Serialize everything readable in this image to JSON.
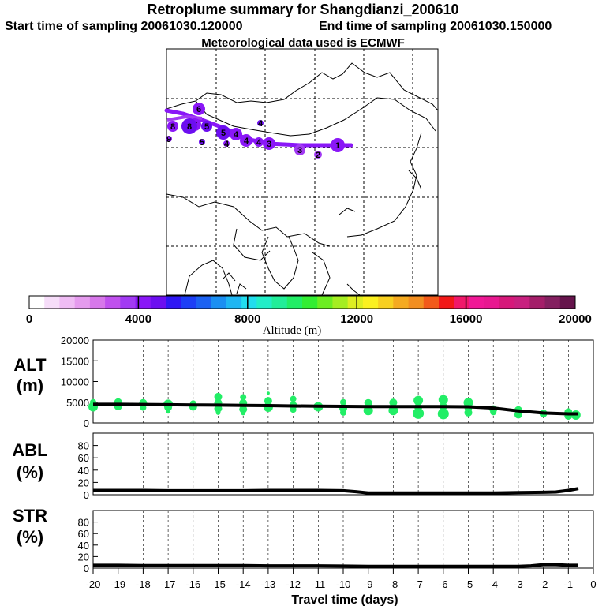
{
  "header": {
    "title": "Retroplume summary for Shangdianzi_200610",
    "start": "Start time of sampling 20061030.120000",
    "end": "End time of sampling 20061030.150000",
    "met": "Meteorological data used is ECMWF"
  },
  "colorbar": {
    "ticks": [
      "0",
      "4000",
      "8000",
      "12000",
      "16000",
      "20000"
    ],
    "label": "Altitude (m)",
    "colors": [
      "#ffffff",
      "#f6ddf9",
      "#efbcf4",
      "#e59bee",
      "#d777ea",
      "#c050ee",
      "#a23af3",
      "#8a17f7",
      "#6c0ef0",
      "#2f17f4",
      "#1d3ff6",
      "#1c62f2",
      "#1b8ff2",
      "#1fb6f2",
      "#22ddee",
      "#22eec8",
      "#22ee99",
      "#22ee66",
      "#33ee33",
      "#6cee22",
      "#a5ee22",
      "#ddee22",
      "#fbf020",
      "#f8d020",
      "#f5aa20",
      "#f28e20",
      "#f25a1a",
      "#f21818",
      "#f0186a",
      "#f01896",
      "#e81890",
      "#d6187a",
      "#c8207f",
      "#a41e69",
      "#842060",
      "#66144c"
    ]
  },
  "map": {
    "markers": [
      {
        "t": "1",
        "alt": 3900
      },
      {
        "t": "2",
        "alt": 3500
      },
      {
        "t": "3",
        "alt": 3800
      },
      {
        "t": "3",
        "alt": 4000
      },
      {
        "t": "4",
        "alt": 4100
      },
      {
        "t": "4",
        "alt": 4200
      },
      {
        "t": "4",
        "alt": 4300
      },
      {
        "t": "5",
        "alt": 4500
      },
      {
        "t": "5",
        "alt": 4600
      },
      {
        "t": "4",
        "alt": 4400
      },
      {
        "t": "4",
        "alt": 4800
      },
      {
        "t": "5",
        "alt": 4700
      },
      {
        "t": "6",
        "alt": 4200
      },
      {
        "t": "7",
        "alt": 4300
      },
      {
        "t": "8",
        "alt": 4400
      },
      {
        "t": "9",
        "alt": 4100
      },
      {
        "t": "8",
        "alt": 4500
      }
    ]
  },
  "chart_data": [
    {
      "type": "line",
      "name": "ALT",
      "ylabel_lines": [
        "ALT",
        "(m)"
      ],
      "ylim": [
        0,
        20000
      ],
      "yticks": [
        "0",
        "5000",
        "10000",
        "15000",
        "20000"
      ],
      "x": [
        -20,
        -19,
        -18,
        -17,
        -16,
        -15,
        -14,
        -13,
        -12,
        -11,
        -10,
        -9,
        -8,
        -7,
        -6,
        -5,
        -4,
        -3,
        -2,
        -1,
        -0.6
      ],
      "values": [
        4500,
        4500,
        4450,
        4400,
        4350,
        4300,
        4250,
        4200,
        4100,
        4050,
        4000,
        3950,
        3950,
        3950,
        3950,
        3900,
        3600,
        2900,
        2400,
        2200,
        2200
      ],
      "scatter": [
        {
          "x": -20,
          "y": 3900,
          "r": 6
        },
        {
          "x": -20,
          "y": 5000,
          "r": 4
        },
        {
          "x": -19,
          "y": 4000,
          "r": 5
        },
        {
          "x": -19,
          "y": 5000,
          "r": 5
        },
        {
          "x": -18,
          "y": 3700,
          "r": 4
        },
        {
          "x": -18,
          "y": 4800,
          "r": 5
        },
        {
          "x": -17,
          "y": 3800,
          "r": 5
        },
        {
          "x": -17,
          "y": 4500,
          "r": 6
        },
        {
          "x": -17,
          "y": 2800,
          "r": 3
        },
        {
          "x": -16,
          "y": 3900,
          "r": 5
        },
        {
          "x": -16,
          "y": 4700,
          "r": 4
        },
        {
          "x": -15,
          "y": 6300,
          "r": 5
        },
        {
          "x": -15,
          "y": 4800,
          "r": 5
        },
        {
          "x": -15,
          "y": 3500,
          "r": 5
        },
        {
          "x": -15,
          "y": 2500,
          "r": 3
        },
        {
          "x": -14,
          "y": 6200,
          "r": 4
        },
        {
          "x": -14,
          "y": 4800,
          "r": 5
        },
        {
          "x": -14,
          "y": 3300,
          "r": 5
        },
        {
          "x": -14,
          "y": 2400,
          "r": 3
        },
        {
          "x": -13,
          "y": 7200,
          "r": 2
        },
        {
          "x": -13,
          "y": 5300,
          "r": 5
        },
        {
          "x": -13,
          "y": 3800,
          "r": 6
        },
        {
          "x": -12,
          "y": 5800,
          "r": 4
        },
        {
          "x": -12,
          "y": 4200,
          "r": 5
        },
        {
          "x": -12,
          "y": 3200,
          "r": 4
        },
        {
          "x": -11,
          "y": 3900,
          "r": 6
        },
        {
          "x": -10,
          "y": 5000,
          "r": 4
        },
        {
          "x": -10,
          "y": 3500,
          "r": 5
        },
        {
          "x": -10,
          "y": 2500,
          "r": 4
        },
        {
          "x": -9,
          "y": 4800,
          "r": 5
        },
        {
          "x": -9,
          "y": 3000,
          "r": 6
        },
        {
          "x": -8,
          "y": 4900,
          "r": 5
        },
        {
          "x": -8,
          "y": 3000,
          "r": 6
        },
        {
          "x": -7,
          "y": 5400,
          "r": 6
        },
        {
          "x": -7,
          "y": 3800,
          "r": 5
        },
        {
          "x": -7,
          "y": 2300,
          "r": 7
        },
        {
          "x": -6,
          "y": 5600,
          "r": 6
        },
        {
          "x": -6,
          "y": 4000,
          "r": 5
        },
        {
          "x": -6,
          "y": 2200,
          "r": 7
        },
        {
          "x": -5,
          "y": 4900,
          "r": 6
        },
        {
          "x": -5,
          "y": 3700,
          "r": 5
        },
        {
          "x": -5,
          "y": 2500,
          "r": 5
        },
        {
          "x": -4,
          "y": 3300,
          "r": 5
        },
        {
          "x": -4,
          "y": 2600,
          "r": 4
        },
        {
          "x": -3,
          "y": 3100,
          "r": 5
        },
        {
          "x": -3,
          "y": 2000,
          "r": 5
        },
        {
          "x": -2,
          "y": 2300,
          "r": 5
        },
        {
          "x": -1,
          "y": 2600,
          "r": 5
        },
        {
          "x": -0.7,
          "y": 1900,
          "r": 6
        },
        {
          "x": -1,
          "y": 1700,
          "r": 5
        }
      ]
    },
    {
      "type": "line",
      "name": "ABL",
      "ylabel_lines": [
        "ABL",
        "(%)"
      ],
      "ylim": [
        0,
        100
      ],
      "yticks": [
        "0",
        "20",
        "40",
        "60",
        "80"
      ],
      "x": [
        -20,
        -19,
        -18,
        -17,
        -16,
        -15,
        -14,
        -13,
        -12,
        -11,
        -10,
        -9.5,
        -9,
        -8,
        -7,
        -6,
        -5,
        -4,
        -3,
        -2,
        -1.5,
        -1,
        -0.6
      ],
      "values": [
        7,
        7,
        7,
        6.5,
        6.5,
        6.5,
        6.5,
        7,
        7,
        7,
        6.5,
        5,
        3,
        3,
        3,
        3,
        3,
        3,
        3.5,
        4,
        4.5,
        7,
        10
      ]
    },
    {
      "type": "line",
      "name": "STR",
      "ylabel_lines": [
        "STR",
        "(%)"
      ],
      "ylim": [
        0,
        100
      ],
      "yticks": [
        "0",
        "20",
        "40",
        "60",
        "80"
      ],
      "x": [
        -20,
        -19,
        -18,
        -17,
        -16,
        -15,
        -14,
        -13,
        -12,
        -11,
        -10,
        -9,
        -8,
        -7,
        -6,
        -5,
        -4,
        -3,
        -2.5,
        -2,
        -1.5,
        -1,
        -0.6
      ],
      "values": [
        5,
        5,
        4.5,
        4.5,
        4.5,
        4.5,
        4.5,
        4,
        4,
        4,
        3.5,
        3,
        3,
        3,
        3,
        3,
        3,
        3,
        4,
        6,
        6,
        5,
        5
      ]
    }
  ],
  "xaxis": {
    "ticks": [
      "-20",
      "-19",
      "-18",
      "-17",
      "-16",
      "-15",
      "-14",
      "-13",
      "-12",
      "-11",
      "-10",
      "-9",
      "-8",
      "-7",
      "-6",
      "-5",
      "-4",
      "-3",
      "-2",
      "-1",
      "0"
    ],
    "label": "Travel time (days)"
  }
}
